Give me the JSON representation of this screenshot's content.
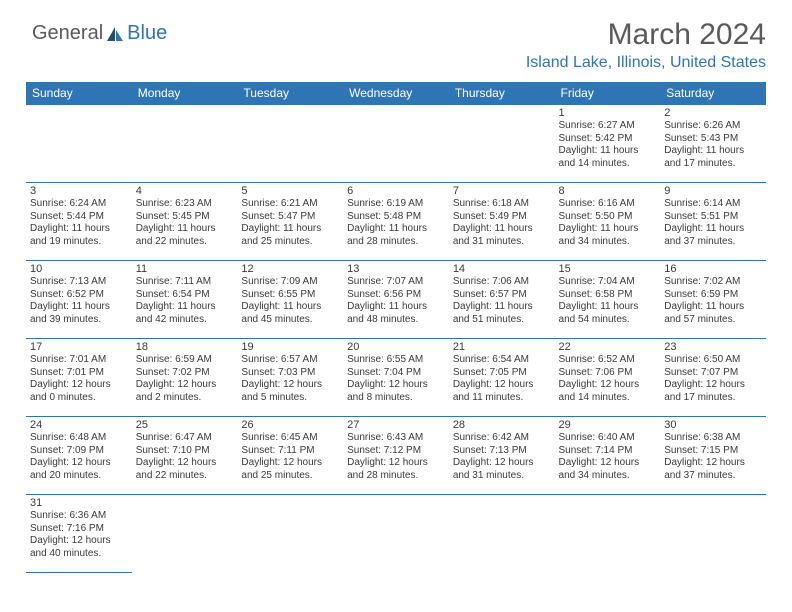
{
  "logo": {
    "text1": "General",
    "text2": "Blue"
  },
  "title": "March 2024",
  "location": "Island Lake, Illinois, United States",
  "day_headers": [
    "Sunday",
    "Monday",
    "Tuesday",
    "Wednesday",
    "Thursday",
    "Friday",
    "Saturday"
  ],
  "colors": {
    "accent": "#2e75b6",
    "text": "#3a3a3a",
    "bg": "#ffffff"
  },
  "grid": [
    [
      null,
      null,
      null,
      null,
      null,
      {
        "n": "1",
        "sunrise": "Sunrise: 6:27 AM",
        "sunset": "Sunset: 5:42 PM",
        "d1": "Daylight: 11 hours",
        "d2": "and 14 minutes."
      },
      {
        "n": "2",
        "sunrise": "Sunrise: 6:26 AM",
        "sunset": "Sunset: 5:43 PM",
        "d1": "Daylight: 11 hours",
        "d2": "and 17 minutes."
      }
    ],
    [
      {
        "n": "3",
        "sunrise": "Sunrise: 6:24 AM",
        "sunset": "Sunset: 5:44 PM",
        "d1": "Daylight: 11 hours",
        "d2": "and 19 minutes."
      },
      {
        "n": "4",
        "sunrise": "Sunrise: 6:23 AM",
        "sunset": "Sunset: 5:45 PM",
        "d1": "Daylight: 11 hours",
        "d2": "and 22 minutes."
      },
      {
        "n": "5",
        "sunrise": "Sunrise: 6:21 AM",
        "sunset": "Sunset: 5:47 PM",
        "d1": "Daylight: 11 hours",
        "d2": "and 25 minutes."
      },
      {
        "n": "6",
        "sunrise": "Sunrise: 6:19 AM",
        "sunset": "Sunset: 5:48 PM",
        "d1": "Daylight: 11 hours",
        "d2": "and 28 minutes."
      },
      {
        "n": "7",
        "sunrise": "Sunrise: 6:18 AM",
        "sunset": "Sunset: 5:49 PM",
        "d1": "Daylight: 11 hours",
        "d2": "and 31 minutes."
      },
      {
        "n": "8",
        "sunrise": "Sunrise: 6:16 AM",
        "sunset": "Sunset: 5:50 PM",
        "d1": "Daylight: 11 hours",
        "d2": "and 34 minutes."
      },
      {
        "n": "9",
        "sunrise": "Sunrise: 6:14 AM",
        "sunset": "Sunset: 5:51 PM",
        "d1": "Daylight: 11 hours",
        "d2": "and 37 minutes."
      }
    ],
    [
      {
        "n": "10",
        "sunrise": "Sunrise: 7:13 AM",
        "sunset": "Sunset: 6:52 PM",
        "d1": "Daylight: 11 hours",
        "d2": "and 39 minutes."
      },
      {
        "n": "11",
        "sunrise": "Sunrise: 7:11 AM",
        "sunset": "Sunset: 6:54 PM",
        "d1": "Daylight: 11 hours",
        "d2": "and 42 minutes."
      },
      {
        "n": "12",
        "sunrise": "Sunrise: 7:09 AM",
        "sunset": "Sunset: 6:55 PM",
        "d1": "Daylight: 11 hours",
        "d2": "and 45 minutes."
      },
      {
        "n": "13",
        "sunrise": "Sunrise: 7:07 AM",
        "sunset": "Sunset: 6:56 PM",
        "d1": "Daylight: 11 hours",
        "d2": "and 48 minutes."
      },
      {
        "n": "14",
        "sunrise": "Sunrise: 7:06 AM",
        "sunset": "Sunset: 6:57 PM",
        "d1": "Daylight: 11 hours",
        "d2": "and 51 minutes."
      },
      {
        "n": "15",
        "sunrise": "Sunrise: 7:04 AM",
        "sunset": "Sunset: 6:58 PM",
        "d1": "Daylight: 11 hours",
        "d2": "and 54 minutes."
      },
      {
        "n": "16",
        "sunrise": "Sunrise: 7:02 AM",
        "sunset": "Sunset: 6:59 PM",
        "d1": "Daylight: 11 hours",
        "d2": "and 57 minutes."
      }
    ],
    [
      {
        "n": "17",
        "sunrise": "Sunrise: 7:01 AM",
        "sunset": "Sunset: 7:01 PM",
        "d1": "Daylight: 12 hours",
        "d2": "and 0 minutes."
      },
      {
        "n": "18",
        "sunrise": "Sunrise: 6:59 AM",
        "sunset": "Sunset: 7:02 PM",
        "d1": "Daylight: 12 hours",
        "d2": "and 2 minutes."
      },
      {
        "n": "19",
        "sunrise": "Sunrise: 6:57 AM",
        "sunset": "Sunset: 7:03 PM",
        "d1": "Daylight: 12 hours",
        "d2": "and 5 minutes."
      },
      {
        "n": "20",
        "sunrise": "Sunrise: 6:55 AM",
        "sunset": "Sunset: 7:04 PM",
        "d1": "Daylight: 12 hours",
        "d2": "and 8 minutes."
      },
      {
        "n": "21",
        "sunrise": "Sunrise: 6:54 AM",
        "sunset": "Sunset: 7:05 PM",
        "d1": "Daylight: 12 hours",
        "d2": "and 11 minutes."
      },
      {
        "n": "22",
        "sunrise": "Sunrise: 6:52 AM",
        "sunset": "Sunset: 7:06 PM",
        "d1": "Daylight: 12 hours",
        "d2": "and 14 minutes."
      },
      {
        "n": "23",
        "sunrise": "Sunrise: 6:50 AM",
        "sunset": "Sunset: 7:07 PM",
        "d1": "Daylight: 12 hours",
        "d2": "and 17 minutes."
      }
    ],
    [
      {
        "n": "24",
        "sunrise": "Sunrise: 6:48 AM",
        "sunset": "Sunset: 7:09 PM",
        "d1": "Daylight: 12 hours",
        "d2": "and 20 minutes."
      },
      {
        "n": "25",
        "sunrise": "Sunrise: 6:47 AM",
        "sunset": "Sunset: 7:10 PM",
        "d1": "Daylight: 12 hours",
        "d2": "and 22 minutes."
      },
      {
        "n": "26",
        "sunrise": "Sunrise: 6:45 AM",
        "sunset": "Sunset: 7:11 PM",
        "d1": "Daylight: 12 hours",
        "d2": "and 25 minutes."
      },
      {
        "n": "27",
        "sunrise": "Sunrise: 6:43 AM",
        "sunset": "Sunset: 7:12 PM",
        "d1": "Daylight: 12 hours",
        "d2": "and 28 minutes."
      },
      {
        "n": "28",
        "sunrise": "Sunrise: 6:42 AM",
        "sunset": "Sunset: 7:13 PM",
        "d1": "Daylight: 12 hours",
        "d2": "and 31 minutes."
      },
      {
        "n": "29",
        "sunrise": "Sunrise: 6:40 AM",
        "sunset": "Sunset: 7:14 PM",
        "d1": "Daylight: 12 hours",
        "d2": "and 34 minutes."
      },
      {
        "n": "30",
        "sunrise": "Sunrise: 6:38 AM",
        "sunset": "Sunset: 7:15 PM",
        "d1": "Daylight: 12 hours",
        "d2": "and 37 minutes."
      }
    ],
    [
      {
        "n": "31",
        "sunrise": "Sunrise: 6:36 AM",
        "sunset": "Sunset: 7:16 PM",
        "d1": "Daylight: 12 hours",
        "d2": "and 40 minutes."
      },
      null,
      null,
      null,
      null,
      null,
      null
    ]
  ]
}
